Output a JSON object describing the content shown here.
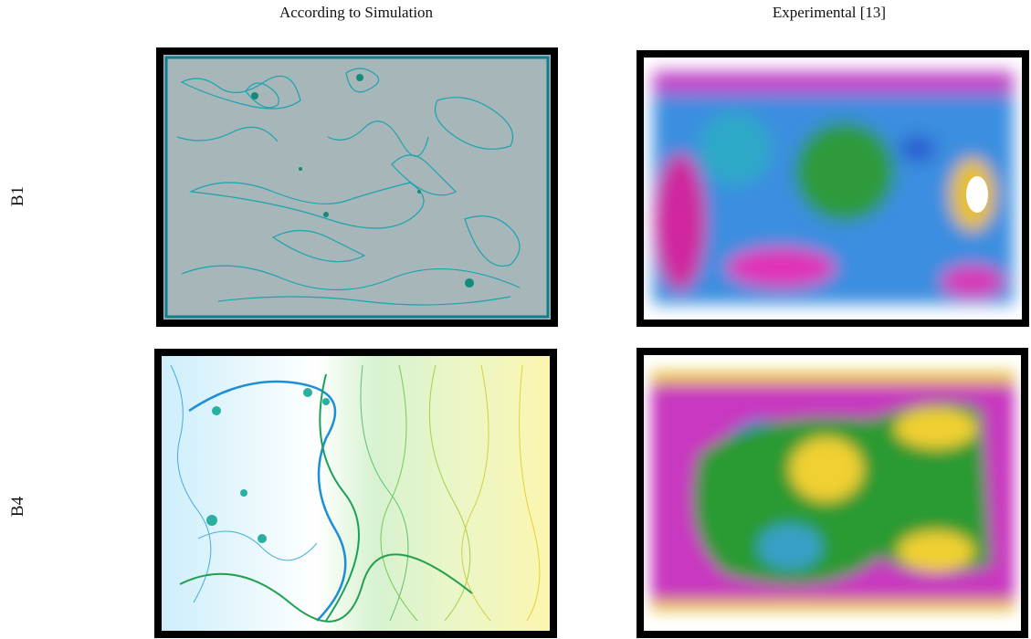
{
  "columns": [
    "According to Simulation",
    "Experimental [13]"
  ],
  "rows": [
    "B1",
    "B4"
  ]
}
